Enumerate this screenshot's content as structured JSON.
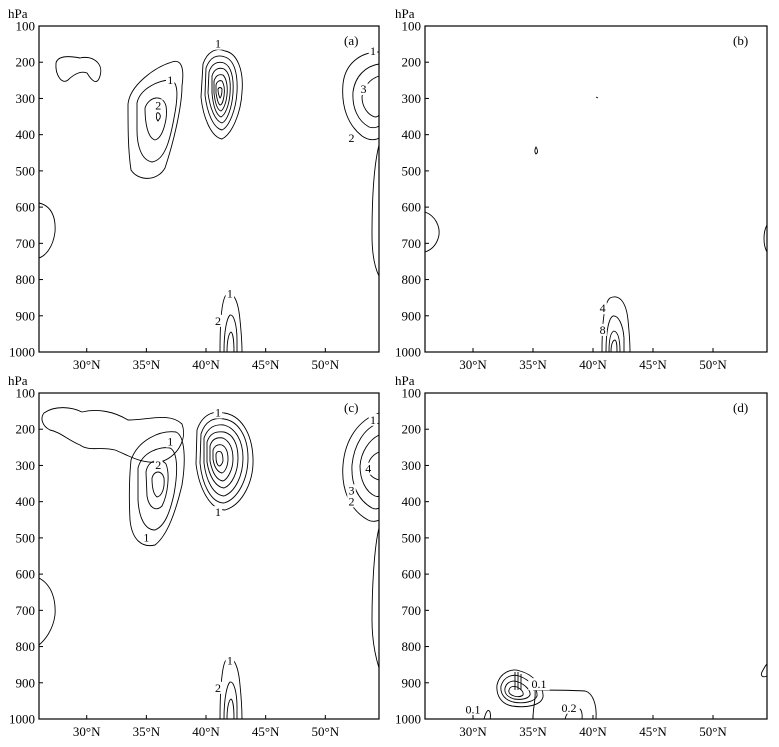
{
  "chart_data": [
    {
      "type": "contour",
      "panel_label": "(a)",
      "ylabel": "hPa",
      "xticks": [
        "30°N",
        "35°N",
        "40°N",
        "45°N",
        "50°N"
      ],
      "yticks": [
        "100",
        "200",
        "300",
        "400",
        "500",
        "600",
        "700",
        "800",
        "900",
        "1000"
      ],
      "xlim": [
        26,
        54.5
      ],
      "ylim": [
        1000,
        100
      ],
      "contour_labels": [
        {
          "text": "1",
          "lat": 37.0,
          "p": 260
        },
        {
          "text": "2",
          "lat": 36.0,
          "p": 330
        },
        {
          "text": "1",
          "lat": 41.0,
          "p": 160
        },
        {
          "text": "1",
          "lat": 54.0,
          "p": 180
        },
        {
          "text": "3",
          "lat": 53.2,
          "p": 285
        },
        {
          "text": "2",
          "lat": 52.2,
          "p": 420
        },
        {
          "text": "1",
          "lat": 42.0,
          "p": 850
        },
        {
          "text": "2",
          "lat": 41.0,
          "p": 925
        }
      ]
    },
    {
      "type": "contour",
      "panel_label": "(b)",
      "ylabel": "hPa",
      "xticks": [
        "30°N",
        "35°N",
        "40°N",
        "45°N",
        "50°N"
      ],
      "yticks": [
        "100",
        "200",
        "300",
        "400",
        "500",
        "600",
        "700",
        "800",
        "900",
        "1000"
      ],
      "xlim": [
        26,
        54.5
      ],
      "ylim": [
        1000,
        100
      ],
      "contour_labels": [
        {
          "text": "4",
          "lat": 40.8,
          "p": 890
        },
        {
          "text": "8",
          "lat": 40.8,
          "p": 950
        }
      ]
    },
    {
      "type": "contour",
      "panel_label": "(c)",
      "ylabel": "hPa",
      "xticks": [
        "30°N",
        "35°N",
        "40°N",
        "45°N",
        "50°N"
      ],
      "yticks": [
        "100",
        "200",
        "300",
        "400",
        "500",
        "600",
        "700",
        "800",
        "900",
        "1000"
      ],
      "xlim": [
        26,
        54.5
      ],
      "ylim": [
        1000,
        100
      ],
      "contour_labels": [
        {
          "text": "1",
          "lat": 37.0,
          "p": 245
        },
        {
          "text": "2",
          "lat": 36.0,
          "p": 310
        },
        {
          "text": "1",
          "lat": 35.0,
          "p": 510
        },
        {
          "text": "1",
          "lat": 41.0,
          "p": 165
        },
        {
          "text": "1",
          "lat": 41.0,
          "p": 440
        },
        {
          "text": "1",
          "lat": 54.0,
          "p": 185
        },
        {
          "text": "4",
          "lat": 53.6,
          "p": 320
        },
        {
          "text": "3",
          "lat": 52.2,
          "p": 380
        },
        {
          "text": "2",
          "lat": 52.2,
          "p": 410
        },
        {
          "text": "1",
          "lat": 42.0,
          "p": 850
        },
        {
          "text": "2",
          "lat": 41.0,
          "p": 925
        }
      ]
    },
    {
      "type": "contour",
      "panel_label": "(d)",
      "ylabel": "hPa",
      "xticks": [
        "30°N",
        "35°N",
        "40°N",
        "45°N",
        "50°N"
      ],
      "yticks": [
        "100",
        "200",
        "300",
        "400",
        "500",
        "600",
        "700",
        "800",
        "900",
        "1000"
      ],
      "xlim": [
        26,
        54.5
      ],
      "ylim": [
        1000,
        100
      ],
      "contour_labels": [
        {
          "text": "0.1",
          "lat": 30.0,
          "p": 985
        },
        {
          "text": "0.1",
          "lat": 35.5,
          "p": 915
        },
        {
          "text": "0.2",
          "lat": 38.0,
          "p": 980
        }
      ]
    }
  ]
}
